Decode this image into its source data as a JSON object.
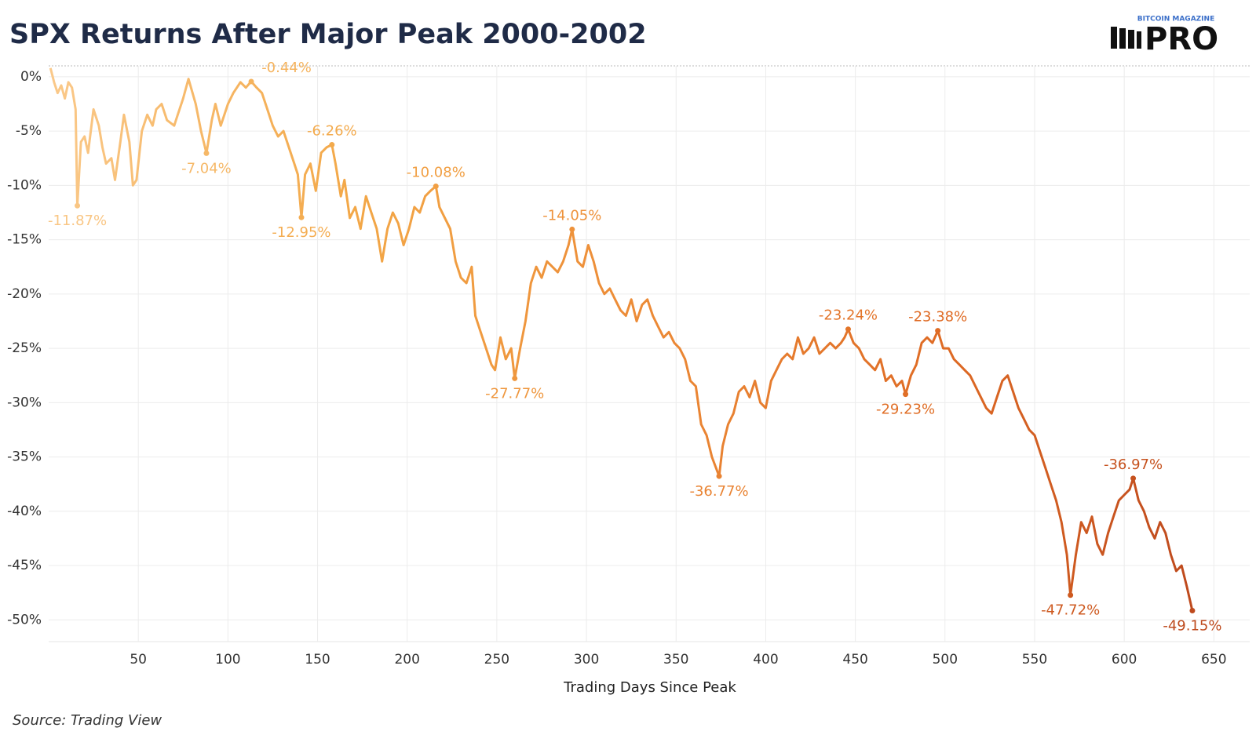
{
  "chart_data": {
    "type": "line",
    "title": "SPX Returns After Major Peak 2000-2002",
    "xlabel": "Trading Days Since Peak",
    "source": "Source: Trading View",
    "brand": {
      "top": "BITCOIN MAGAZINE",
      "main": "PRO"
    },
    "gradient": [
      "#fac98a",
      "#f3a848",
      "#ec8a36",
      "#de6a24",
      "#b7421b"
    ],
    "xlim": [
      0,
      670
    ],
    "ylim": [
      -52,
      1
    ],
    "xticks": [
      50,
      100,
      150,
      200,
      250,
      300,
      350,
      400,
      450,
      500,
      550,
      600,
      650
    ],
    "yticks": [
      {
        "value": 0,
        "label": "0%"
      },
      {
        "value": -5,
        "label": "-5%"
      },
      {
        "value": -10,
        "label": "-10%"
      },
      {
        "value": -15,
        "label": "-15%"
      },
      {
        "value": -20,
        "label": "-20%"
      },
      {
        "value": -25,
        "label": "-25%"
      },
      {
        "value": -30,
        "label": "-30%"
      },
      {
        "value": -35,
        "label": "-35%"
      },
      {
        "value": -40,
        "label": "-40%"
      },
      {
        "value": -45,
        "label": "-45%"
      },
      {
        "value": -50,
        "label": "-50%"
      }
    ],
    "grid": true,
    "x": [
      1,
      3,
      5,
      7,
      9,
      11,
      13,
      15,
      16,
      18,
      20,
      22,
      25,
      28,
      30,
      32,
      35,
      37,
      40,
      42,
      45,
      47,
      49,
      52,
      55,
      58,
      60,
      63,
      66,
      70,
      72,
      75,
      78,
      82,
      85,
      88,
      91,
      93,
      96,
      100,
      103,
      107,
      110,
      113,
      116,
      119,
      122,
      125,
      128,
      131,
      134,
      137,
      139,
      141,
      143,
      146,
      149,
      152,
      155,
      158,
      160,
      163,
      165,
      168,
      171,
      174,
      177,
      180,
      183,
      186,
      189,
      192,
      195,
      198,
      201,
      204,
      207,
      210,
      213,
      216,
      218,
      221,
      224,
      227,
      230,
      233,
      236,
      238,
      241,
      244,
      247,
      249,
      252,
      255,
      258,
      260,
      263,
      266,
      269,
      272,
      275,
      278,
      281,
      284,
      287,
      290,
      292,
      295,
      298,
      301,
      304,
      307,
      310,
      313,
      316,
      319,
      322,
      325,
      328,
      331,
      334,
      337,
      340,
      343,
      346,
      349,
      352,
      355,
      358,
      361,
      364,
      367,
      370,
      374,
      376,
      379,
      382,
      385,
      388,
      391,
      394,
      397,
      400,
      403,
      406,
      409,
      412,
      415,
      418,
      421,
      424,
      427,
      430,
      433,
      436,
      439,
      442,
      444,
      446,
      449,
      452,
      455,
      458,
      461,
      464,
      467,
      470,
      473,
      476,
      478,
      481,
      484,
      487,
      490,
      493,
      496,
      499,
      502,
      505,
      508,
      511,
      514,
      517,
      520,
      523,
      526,
      529,
      532,
      535,
      538,
      541,
      544,
      547,
      550,
      553,
      556,
      559,
      562,
      565,
      568,
      570,
      573,
      576,
      579,
      582,
      585,
      588,
      591,
      594,
      597,
      600,
      603,
      605,
      608,
      611,
      614,
      617,
      620,
      623,
      626,
      629,
      632,
      635,
      638
    ],
    "values": [
      0.8,
      -0.5,
      -1.5,
      -0.8,
      -2,
      -0.5,
      -1,
      -3,
      -11.87,
      -6,
      -5.5,
      -7,
      -3,
      -4.5,
      -6.5,
      -8,
      -7.5,
      -9.5,
      -6,
      -3.5,
      -6,
      -10,
      -9.5,
      -5,
      -3.5,
      -4.5,
      -3,
      -2.5,
      -4,
      -4.5,
      -3.5,
      -2,
      -0.2,
      -2.5,
      -5,
      -7.04,
      -4,
      -2.5,
      -4.5,
      -2.5,
      -1.5,
      -0.5,
      -1,
      -0.44,
      -1,
      -1.5,
      -3,
      -4.5,
      -5.5,
      -5,
      -6.5,
      -8,
      -9,
      -12.95,
      -9,
      -8,
      -10.5,
      -7,
      -6.5,
      -6.26,
      -8,
      -11,
      -9.5,
      -13,
      -12,
      -14,
      -11,
      -12.5,
      -14,
      -17,
      -14,
      -12.5,
      -13.5,
      -15.5,
      -14,
      -12,
      -12.5,
      -11,
      -10.5,
      -10.08,
      -12,
      -13,
      -14,
      -17,
      -18.5,
      -19,
      -17.5,
      -22,
      -23.5,
      -25,
      -26.5,
      -27,
      -24,
      -26,
      -25,
      -27.77,
      -25,
      -22.5,
      -19,
      -17.5,
      -18.5,
      -17,
      -17.5,
      -18,
      -17,
      -15.5,
      -14.05,
      -17,
      -17.5,
      -15.5,
      -17,
      -19,
      -20,
      -19.5,
      -20.5,
      -21.5,
      -22,
      -20.5,
      -22.5,
      -21,
      -20.5,
      -22,
      -23,
      -24,
      -23.5,
      -24.5,
      -25,
      -26,
      -28,
      -28.5,
      -32,
      -33,
      -35,
      -36.77,
      -34,
      -32,
      -31,
      -29,
      -28.5,
      -29.5,
      -28,
      -30,
      -30.5,
      -28,
      -27,
      -26,
      -25.5,
      -26,
      -24,
      -25.5,
      -25,
      -24,
      -25.5,
      -25,
      -24.5,
      -25,
      -24.5,
      -24,
      -23.24,
      -24.5,
      -25,
      -26,
      -26.5,
      -27,
      -26,
      -28,
      -27.5,
      -28.5,
      -28,
      -29.23,
      -27.5,
      -26.5,
      -24.5,
      -24,
      -24.5,
      -23.38,
      -25,
      -25,
      -26,
      -26.5,
      -27,
      -27.5,
      -28.5,
      -29.5,
      -30.5,
      -31,
      -29.5,
      -28,
      -27.5,
      -29,
      -30.5,
      -31.5,
      -32.5,
      -33,
      -34.5,
      -36,
      -37.5,
      -39,
      -41,
      -44,
      -47.72,
      -44,
      -41,
      -42,
      -40.5,
      -43,
      -44,
      -42,
      -40.5,
      -39,
      -38.5,
      -38,
      -36.97,
      -39,
      -40,
      -41.5,
      -42.5,
      -41,
      -42,
      -44,
      -45.5,
      -45,
      -47,
      -49.15
    ],
    "annotations": [
      {
        "x": 16,
        "value": -11.87,
        "label": "-11.87%"
      },
      {
        "x": 88,
        "value": -7.04,
        "label": "-7.04%"
      },
      {
        "x": 113,
        "value": -0.44,
        "label": "-0.44%"
      },
      {
        "x": 141,
        "value": -12.95,
        "label": "-12.95%"
      },
      {
        "x": 158,
        "value": -6.26,
        "label": "-6.26%"
      },
      {
        "x": 216,
        "value": -10.08,
        "label": "-10.08%"
      },
      {
        "x": 260,
        "value": -27.77,
        "label": "-27.77%"
      },
      {
        "x": 292,
        "value": -14.05,
        "label": "-14.05%"
      },
      {
        "x": 374,
        "value": -36.77,
        "label": "-36.77%"
      },
      {
        "x": 446,
        "value": -23.24,
        "label": "-23.24%"
      },
      {
        "x": 478,
        "value": -29.23,
        "label": "-29.23%"
      },
      {
        "x": 496,
        "value": -23.38,
        "label": "-23.38%"
      },
      {
        "x": 570,
        "value": -47.72,
        "label": "-47.72%"
      },
      {
        "x": 605,
        "value": -36.97,
        "label": "-36.97%"
      },
      {
        "x": 638,
        "value": -49.15,
        "label": "-49.15%"
      }
    ]
  }
}
